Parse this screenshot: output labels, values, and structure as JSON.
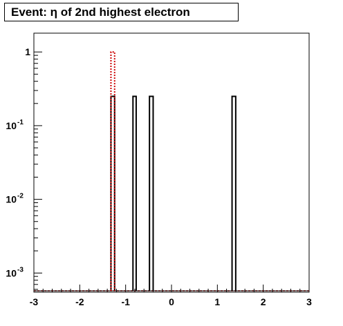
{
  "chart_data": {
    "type": "bar",
    "title": "Event: η of 2nd highest electron",
    "xlabel": "",
    "ylabel": "",
    "xlim": [
      -3,
      3
    ],
    "ylim": [
      0.00055,
      1.8
    ],
    "yscale": "log",
    "grid": false,
    "legend": "none",
    "x_ticks": [
      {
        "value": -3,
        "label": "-3"
      },
      {
        "value": -2,
        "label": "-2"
      },
      {
        "value": -1,
        "label": "-1"
      },
      {
        "value": 0,
        "label": "0"
      },
      {
        "value": 1,
        "label": "1"
      },
      {
        "value": 2,
        "label": "2"
      },
      {
        "value": 3,
        "label": "3"
      }
    ],
    "y_ticks": [
      {
        "value": 1,
        "base": "1",
        "exp": ""
      },
      {
        "value": 0.1,
        "base": "10",
        "exp": "-1"
      },
      {
        "value": 0.01,
        "base": "10",
        "exp": "-2"
      },
      {
        "value": 0.001,
        "base": "10",
        "exp": "-3"
      }
    ],
    "series": [
      {
        "color": "#000000",
        "style": "solid",
        "bars": [
          {
            "x0": -1.32,
            "x1": -1.24,
            "value": 0.25
          },
          {
            "x0": -0.84,
            "x1": -0.77,
            "value": 0.25
          },
          {
            "x0": -0.48,
            "x1": -0.4,
            "value": 0.25
          },
          {
            "x0": 1.32,
            "x1": 1.4,
            "value": 0.25
          }
        ]
      },
      {
        "color": "#cc0000",
        "style": "dotted",
        "bars": [
          {
            "x0": -1.32,
            "x1": -1.24,
            "value": 1.0
          }
        ]
      }
    ]
  }
}
